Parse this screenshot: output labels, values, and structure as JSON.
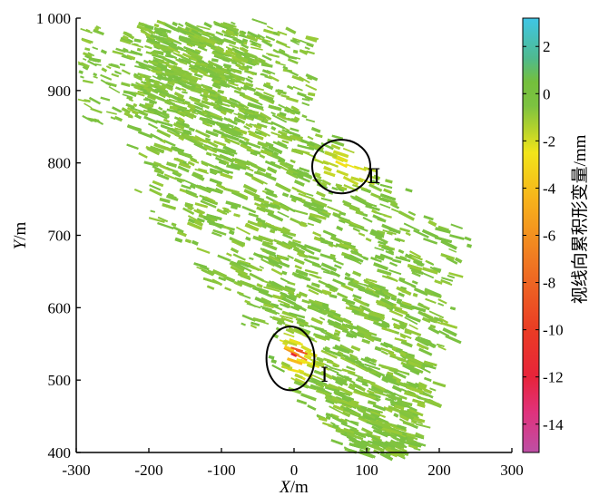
{
  "chart_data": {
    "type": "heatmap",
    "title": "",
    "xlabel": {
      "italic": "X",
      "rest": "/m"
    },
    "ylabel": {
      "italic": "Y",
      "rest": "/m"
    },
    "xlim": [
      -300,
      300
    ],
    "ylim": [
      400,
      1000
    ],
    "xticks": [
      {
        "value": -300,
        "label": "-300"
      },
      {
        "value": -200,
        "label": "-200"
      },
      {
        "value": -100,
        "label": "-100"
      },
      {
        "value": 0,
        "label": "0"
      },
      {
        "value": 100,
        "label": "100"
      },
      {
        "value": 200,
        "label": "200"
      },
      {
        "value": 300,
        "label": "300"
      }
    ],
    "yticks": [
      {
        "value": 400,
        "label": "400"
      },
      {
        "value": 500,
        "label": "500"
      },
      {
        "value": 600,
        "label": "600"
      },
      {
        "value": 700,
        "label": "700"
      },
      {
        "value": 800,
        "label": "800"
      },
      {
        "value": 900,
        "label": "900"
      },
      {
        "value": 1000,
        "label": "1 000"
      }
    ],
    "grid": false,
    "colorbar": {
      "title": "视线向累积形变量/mm",
      "range": [
        -15.2,
        3.2
      ],
      "ticks": [
        {
          "value": 2,
          "label": "2"
        },
        {
          "value": 0,
          "label": "0"
        },
        {
          "value": -2,
          "label": "-2"
        },
        {
          "value": -4,
          "label": "-4"
        },
        {
          "value": -6,
          "label": "-6"
        },
        {
          "value": -8,
          "label": "-8"
        },
        {
          "value": -10,
          "label": "-10"
        },
        {
          "value": -12,
          "label": "-12"
        },
        {
          "value": -14,
          "label": "-14"
        }
      ],
      "stops": [
        {
          "value": 3.2,
          "color": "#3fc6e6"
        },
        {
          "value": 1.5,
          "color": "#4fba8e"
        },
        {
          "value": 0.5,
          "color": "#74bf3c"
        },
        {
          "value": -0.5,
          "color": "#7cc241"
        },
        {
          "value": -1.5,
          "color": "#b5d22c"
        },
        {
          "value": -2.5,
          "color": "#f2e51a"
        },
        {
          "value": -4.5,
          "color": "#f7b21b"
        },
        {
          "value": -7,
          "color": "#f07a22"
        },
        {
          "value": -10,
          "color": "#ea3c24"
        },
        {
          "value": -12,
          "color": "#e7243a"
        },
        {
          "value": -13.5,
          "color": "#e0327c"
        },
        {
          "value": -15.2,
          "color": "#bd4fa5"
        }
      ]
    },
    "deformation_field": {
      "background_value": -0.6,
      "main_band": {
        "center_at_y": [
          {
            "y": 900,
            "x": -140
          },
          {
            "y": 800,
            "x": -60
          },
          {
            "y": 700,
            "x": 20
          },
          {
            "y": 600,
            "x": 60
          },
          {
            "y": 500,
            "x": 90
          },
          {
            "y": 420,
            "x": 110
          }
        ],
        "half_width_at_y": [
          {
            "y": 900,
            "x": 100
          },
          {
            "y": 800,
            "x": 180
          },
          {
            "y": 700,
            "x": 230
          },
          {
            "y": 600,
            "x": 160
          },
          {
            "y": 500,
            "x": 110
          },
          {
            "y": 420,
            "x": 60
          }
        ]
      },
      "anomalies": [
        {
          "x": 70,
          "y": 800,
          "rx": 55,
          "ry": 35,
          "peak": -2.8
        },
        {
          "x": -5,
          "y": 535,
          "rx": 40,
          "ry": 40,
          "peak": -3.5
        },
        {
          "x": -5,
          "y": 540,
          "rx": 15,
          "ry": 10,
          "peak": -13
        },
        {
          "x": -30,
          "y": 530,
          "rx": 20,
          "ry": 15,
          "peak": 1.5
        }
      ]
    },
    "annotations": [
      {
        "label": "Ⅱ",
        "ellipse_center": [
          65,
          795
        ],
        "ellipse_radii": [
          40,
          37
        ],
        "label_at": [
          110,
          772
        ]
      },
      {
        "label": "Ⅰ",
        "ellipse_center": [
          -5,
          530
        ],
        "ellipse_radii": [
          33,
          44
        ],
        "label_at": [
          42,
          498
        ]
      }
    ]
  }
}
